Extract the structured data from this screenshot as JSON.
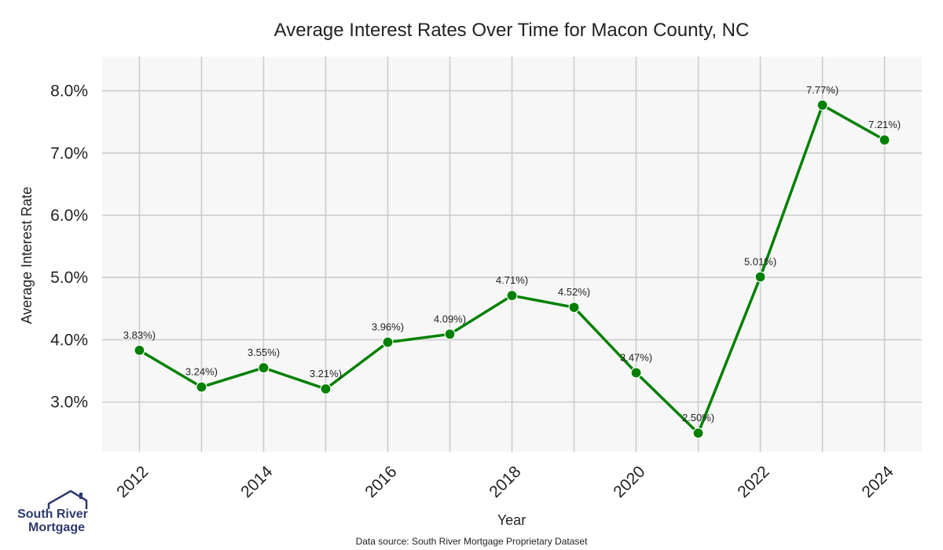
{
  "chart_data": {
    "type": "line",
    "title": "Average Interest Rates Over Time for Macon County, NC",
    "xlabel": "Year",
    "ylabel": "Average Interest Rate",
    "x": [
      2012,
      2013,
      2014,
      2015,
      2016,
      2017,
      2018,
      2019,
      2020,
      2021,
      2022,
      2023,
      2024
    ],
    "values": [
      3.83,
      3.24,
      3.55,
      3.21,
      3.96,
      4.09,
      4.71,
      4.52,
      3.47,
      2.5,
      5.01,
      7.77,
      7.21
    ],
    "data_labels": [
      "3.83%)",
      "3.24%)",
      "3.55%)",
      "3.21%)",
      "3.96%)",
      "4.09%)",
      "4.71%)",
      "4.52%)",
      "3.47%)",
      "2.50%)",
      "5.01%)",
      "7.77%)",
      "7.21%)"
    ],
    "x_ticks": [
      "2012",
      "2014",
      "2016",
      "2018",
      "2020",
      "2022",
      "2024"
    ],
    "x_tick_values": [
      2012,
      2014,
      2016,
      2018,
      2020,
      2022,
      2024
    ],
    "y_ticks": [
      "3.0%",
      "4.0%",
      "5.0%",
      "6.0%",
      "7.0%",
      "8.0%"
    ],
    "y_tick_values": [
      3,
      4,
      5,
      6,
      7,
      8
    ],
    "xlim": [
      2011.4,
      2024.6
    ],
    "ylim": [
      2.2,
      8.55
    ],
    "grid": true,
    "line_color": "#008000",
    "background_color": "#f7f7f7",
    "grid_color": "#cccccc"
  },
  "footer": {
    "source": "Data source: South River Mortgage Proprietary Dataset"
  },
  "logo": {
    "line1": "South River",
    "line2": "Mortgage",
    "icon": "house-roof-icon",
    "color": "#2e3a6e"
  }
}
